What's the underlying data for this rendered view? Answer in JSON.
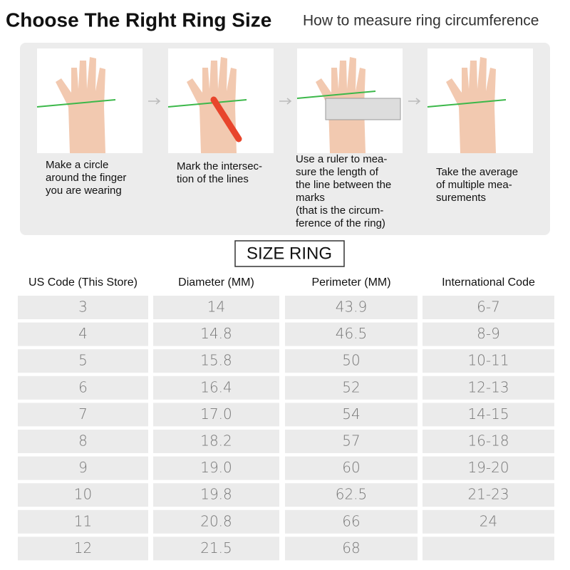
{
  "header": {
    "title": "Choose The Right Ring Size",
    "subtitle": "How to measure ring circumference"
  },
  "steps": [
    {
      "lines": [
        "Make a circle",
        "around the finger",
        "you are wearing"
      ]
    },
    {
      "lines": [
        "Mark the intersec-",
        "tion of the lines"
      ]
    },
    {
      "lines": [
        "Use a ruler to mea-",
        "sure the length of",
        "the line between the",
        "marks",
        " (that is the circum-",
        "ference of the ring)"
      ]
    },
    {
      "lines": [
        "Take the average",
        "of multiple mea-",
        "surements"
      ]
    }
  ],
  "table": {
    "title": "SIZE RING",
    "columns": [
      "US Code  (This Store)",
      "Diameter (MM)",
      "Perimeter (MM)",
      "International Code"
    ],
    "rows": [
      [
        "3",
        "14",
        "43.9",
        "6-7"
      ],
      [
        "4",
        "14.8",
        "46.5",
        "8-9"
      ],
      [
        "5",
        "15.8",
        "50",
        "10-11"
      ],
      [
        "6",
        "16.4",
        "52",
        "12-13"
      ],
      [
        "7",
        "17.0",
        "54",
        "14-15"
      ],
      [
        "8",
        "18.2",
        "57",
        "16-18"
      ],
      [
        "9",
        "19.0",
        "60",
        "19-20"
      ],
      [
        "10",
        "19.8",
        "62.5",
        "21-23"
      ],
      [
        "11",
        "20.8",
        "66",
        "24"
      ],
      [
        "12",
        "21.5",
        "68",
        null
      ]
    ]
  }
}
